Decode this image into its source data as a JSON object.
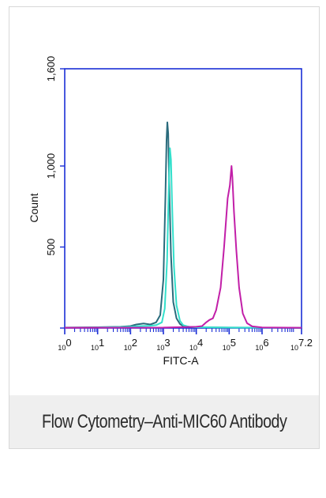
{
  "chart_data": {
    "type": "line",
    "title": "",
    "xlabel": "FITC-A",
    "ylabel": "Count",
    "x_scale": "log",
    "xlim": [
      1,
      15848931
    ],
    "ylim": [
      0,
      1600
    ],
    "x_ticks": [
      {
        "value": 1,
        "base": "10",
        "exp": "0"
      },
      {
        "value": 10,
        "base": "10",
        "exp": "1"
      },
      {
        "value": 100,
        "base": "10",
        "exp": "2"
      },
      {
        "value": 1000,
        "base": "10",
        "exp": "3"
      },
      {
        "value": 10000,
        "base": "10",
        "exp": "4"
      },
      {
        "value": 100000,
        "base": "10",
        "exp": "5"
      },
      {
        "value": 1000000,
        "base": "10",
        "exp": "6"
      },
      {
        "value": 15848931,
        "base": "10",
        "exp": "7.2"
      }
    ],
    "y_ticks": [
      {
        "value": 500,
        "label": "500"
      },
      {
        "value": 1000,
        "label": "1,000"
      },
      {
        "value": 1600,
        "label": "1,600"
      }
    ],
    "grid": false,
    "legend": "none",
    "series": [
      {
        "color": "#2a6b7c",
        "points": [
          [
            1,
            3
          ],
          [
            10,
            5
          ],
          [
            50,
            8
          ],
          [
            100,
            12
          ],
          [
            150,
            22
          ],
          [
            250,
            28
          ],
          [
            400,
            22
          ],
          [
            600,
            35
          ],
          [
            800,
            80
          ],
          [
            1000,
            300
          ],
          [
            1150,
            800
          ],
          [
            1250,
            1160
          ],
          [
            1320,
            1270
          ],
          [
            1400,
            1200
          ],
          [
            1500,
            900
          ],
          [
            1700,
            450
          ],
          [
            2000,
            160
          ],
          [
            2500,
            60
          ],
          [
            3200,
            25
          ],
          [
            4000,
            12
          ],
          [
            6000,
            8
          ],
          [
            10000,
            5
          ],
          [
            100000,
            3
          ],
          [
            15848931,
            2
          ]
        ]
      },
      {
        "color": "#33e0cc",
        "points": [
          [
            1,
            2
          ],
          [
            10,
            4
          ],
          [
            50,
            6
          ],
          [
            100,
            8
          ],
          [
            200,
            12
          ],
          [
            400,
            14
          ],
          [
            600,
            18
          ],
          [
            900,
            35
          ],
          [
            1100,
            120
          ],
          [
            1300,
            420
          ],
          [
            1450,
            850
          ],
          [
            1580,
            1110
          ],
          [
            1700,
            1040
          ],
          [
            1850,
            750
          ],
          [
            2100,
            380
          ],
          [
            2500,
            140
          ],
          [
            3200,
            45
          ],
          [
            4000,
            18
          ],
          [
            6000,
            8
          ],
          [
            10000,
            5
          ],
          [
            100000,
            3
          ],
          [
            15848931,
            2
          ]
        ]
      },
      {
        "color": "#c21fa8",
        "points": [
          [
            1,
            2
          ],
          [
            1000,
            3
          ],
          [
            10000,
            8
          ],
          [
            15000,
            12
          ],
          [
            20000,
            35
          ],
          [
            25000,
            50
          ],
          [
            32000,
            60
          ],
          [
            40000,
            110
          ],
          [
            55000,
            250
          ],
          [
            70000,
            500
          ],
          [
            90000,
            800
          ],
          [
            105000,
            880
          ],
          [
            118000,
            1000
          ],
          [
            125000,
            930
          ],
          [
            140000,
            720
          ],
          [
            165000,
            480
          ],
          [
            200000,
            250
          ],
          [
            260000,
            90
          ],
          [
            350000,
            30
          ],
          [
            500000,
            10
          ],
          [
            1000000,
            4
          ],
          [
            15848931,
            2
          ]
        ]
      }
    ]
  },
  "caption": "Flow Cytometry–Anti-MIC60 Antibody"
}
